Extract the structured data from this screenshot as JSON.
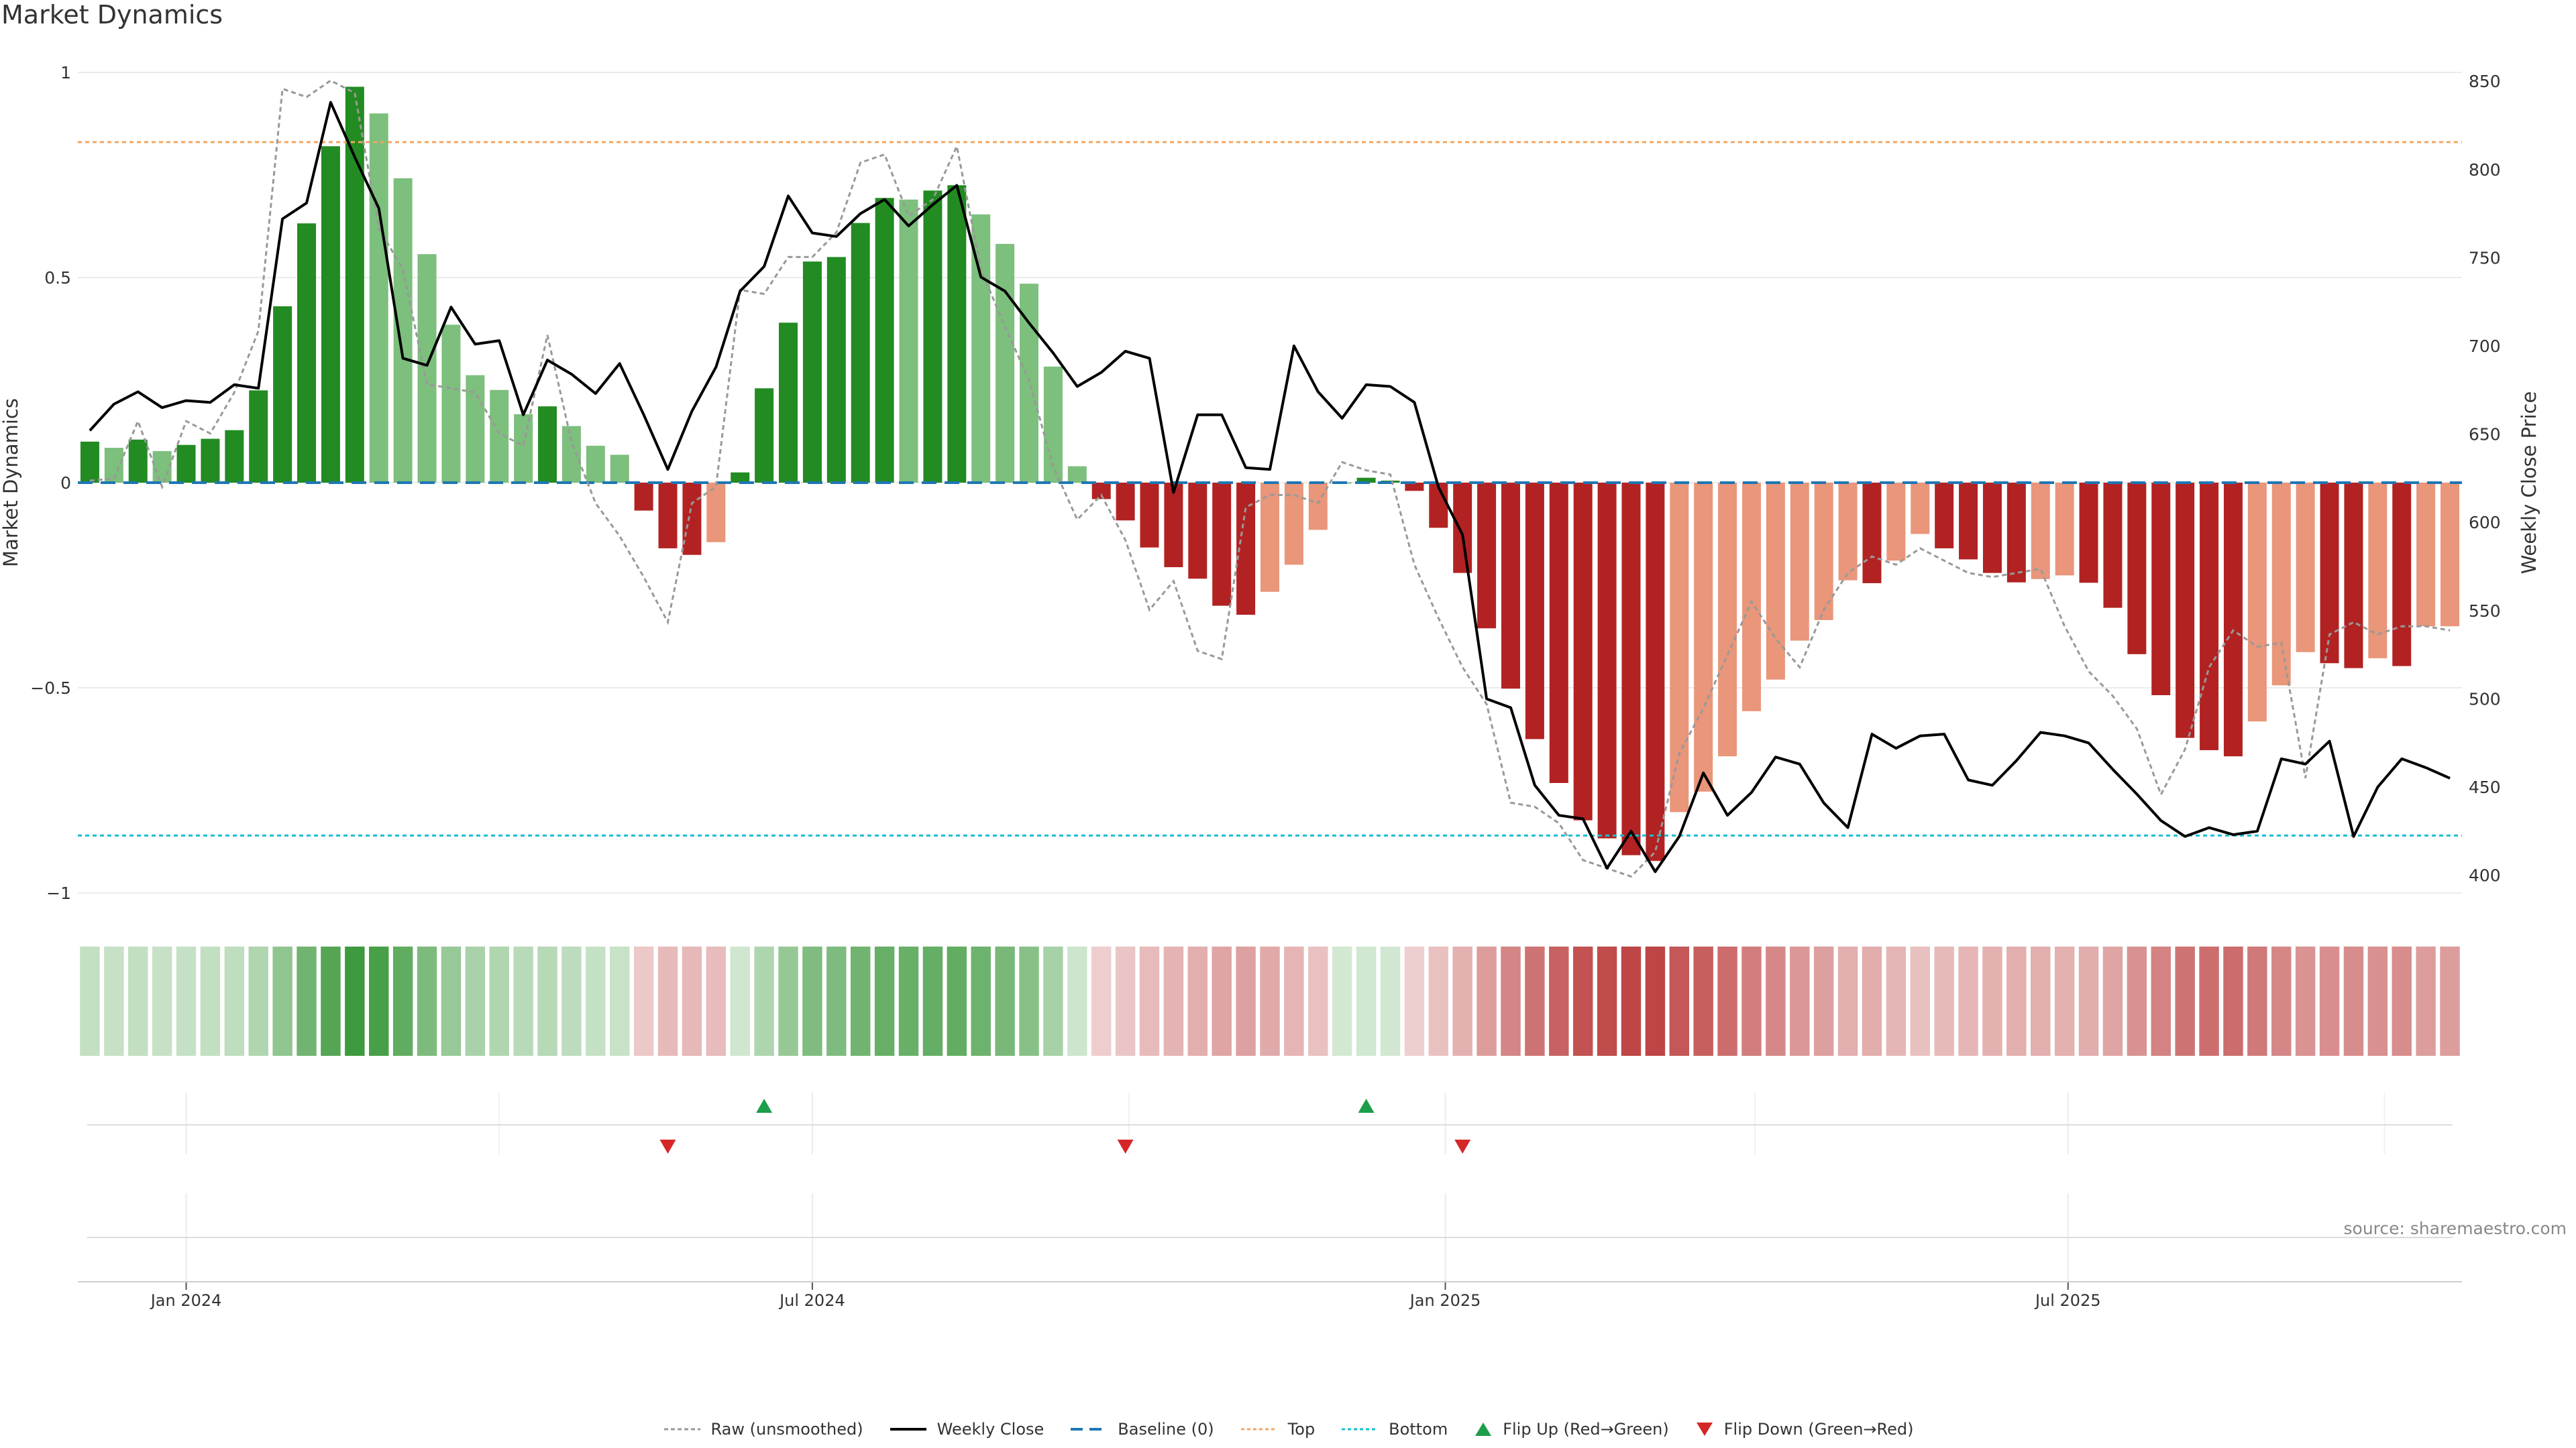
{
  "chart_data": {
    "type": "bar",
    "title": "Market Dynamics",
    "ylabel": "Market Dynamics",
    "y2label": "Weekly Close Price",
    "ylim": [
      -1.0,
      1.0
    ],
    "y2lim": [
      390,
      855
    ],
    "yticks": [
      1,
      0.5,
      0,
      -0.5,
      -1
    ],
    "ytick_labels": [
      "1",
      "0.5",
      "0",
      "−0.5",
      "−1"
    ],
    "y2ticks": [
      850,
      800,
      750,
      700,
      650,
      600,
      550,
      500,
      450,
      400
    ],
    "y2tick_labels": [
      "850",
      "800",
      "750",
      "700",
      "650",
      "600",
      "550",
      "500",
      "450",
      "400"
    ],
    "x_start": "2023-12-04",
    "x_end": "2025-10-20",
    "xticks": [
      "2024-01-01",
      "2024-07-01",
      "2025-01-01",
      "2025-07-01"
    ],
    "xtick_labels": [
      "Jan 2024",
      "Jul 2024",
      "Jan 2025",
      "Jul 2025"
    ],
    "weeks": 99,
    "bars": [
      0.1,
      0.085,
      0.105,
      0.077,
      0.092,
      0.107,
      0.128,
      0.225,
      0.43,
      0.632,
      0.82,
      0.965,
      0.9,
      0.742,
      0.557,
      0.385,
      0.262,
      0.226,
      0.167,
      0.186,
      0.138,
      0.09,
      0.068,
      -0.068,
      -0.16,
      -0.176,
      -0.145,
      0.025,
      0.23,
      0.39,
      0.539,
      0.55,
      0.633,
      0.694,
      0.69,
      0.712,
      0.725,
      0.654,
      0.582,
      0.485,
      0.283,
      0.04,
      -0.04,
      -0.092,
      -0.158,
      -0.206,
      -0.234,
      -0.3,
      -0.322,
      -0.266,
      -0.2,
      -0.115,
      0,
      0.012,
      0.005,
      -0.02,
      -0.11,
      -0.22,
      -0.355,
      -0.502,
      -0.625,
      -0.732,
      -0.823,
      -0.867,
      -0.908,
      -0.922,
      -0.803,
      -0.753,
      -0.667,
      -0.557,
      -0.48,
      -0.385,
      -0.335,
      -0.238,
      -0.245,
      -0.19,
      -0.125,
      -0.16,
      -0.187,
      -0.22,
      -0.243,
      -0.235,
      -0.226,
      -0.244,
      -0.305,
      -0.418,
      -0.518,
      -0.622,
      -0.652,
      -0.667,
      -0.582,
      -0.494,
      -0.413,
      -0.44,
      -0.452,
      -0.428,
      -0.447,
      -0.35,
      -0.35
    ],
    "bar_state": [
      "strong",
      "weak",
      "strong",
      "weak",
      "strong",
      "strong",
      "strong",
      "strong",
      "strong",
      "strong",
      "strong",
      "strong",
      "weak",
      "weak",
      "weak",
      "weak",
      "weak",
      "weak",
      "weak",
      "strong",
      "weak",
      "weak",
      "weak",
      "strong",
      "strong",
      "strong",
      "weak",
      "strong",
      "strong",
      "strong",
      "strong",
      "strong",
      "strong",
      "strong",
      "weak",
      "strong",
      "strong",
      "weak",
      "weak",
      "weak",
      "weak",
      "weak",
      "strong",
      "strong",
      "strong",
      "strong",
      "strong",
      "strong",
      "strong",
      "weak",
      "weak",
      "weak",
      "strong",
      "strong",
      "strong",
      "strong",
      "strong",
      "strong",
      "strong",
      "strong",
      "strong",
      "strong",
      "strong",
      "strong",
      "strong",
      "strong",
      "weak",
      "weak",
      "weak",
      "weak",
      "weak",
      "weak",
      "weak",
      "weak",
      "strong",
      "weak",
      "weak",
      "strong",
      "strong",
      "strong",
      "strong",
      "weak",
      "weak",
      "strong",
      "strong",
      "strong",
      "strong",
      "strong",
      "strong",
      "strong",
      "weak",
      "weak",
      "weak",
      "strong",
      "strong",
      "weak",
      "strong",
      "weak",
      "weak"
    ],
    "raw": [
      0.005,
      0.01,
      0.15,
      -0.01,
      0.15,
      0.12,
      0.22,
      0.37,
      0.96,
      0.94,
      0.98,
      0.95,
      0.62,
      0.52,
      0.24,
      0.23,
      0.22,
      0.12,
      0.09,
      0.36,
      0.1,
      -0.05,
      -0.13,
      -0.23,
      -0.34,
      -0.05,
      -0.01,
      0.47,
      0.46,
      0.55,
      0.55,
      0.61,
      0.78,
      0.8,
      0.65,
      0.69,
      0.82,
      0.52,
      0.38,
      0.25,
      0.04,
      -0.09,
      -0.03,
      -0.14,
      -0.31,
      -0.24,
      -0.41,
      -0.43,
      -0.06,
      -0.03,
      -0.03,
      -0.05,
      0.05,
      0.03,
      0.02,
      -0.2,
      -0.33,
      -0.45,
      -0.54,
      -0.78,
      -0.79,
      -0.83,
      -0.92,
      -0.94,
      -0.96,
      -0.9,
      -0.66,
      -0.55,
      -0.42,
      -0.29,
      -0.38,
      -0.45,
      -0.31,
      -0.22,
      -0.18,
      -0.2,
      -0.16,
      -0.19,
      -0.22,
      -0.23,
      -0.22,
      -0.21,
      -0.35,
      -0.46,
      -0.52,
      -0.6,
      -0.76,
      -0.65,
      -0.45,
      -0.36,
      -0.4,
      -0.39,
      -0.72,
      -0.37,
      -0.34,
      -0.37,
      -0.35,
      -0.35,
      -0.36
    ],
    "close": [
      652,
      667,
      674,
      665,
      669,
      668,
      678,
      676,
      772,
      781,
      838,
      807,
      778,
      693,
      689,
      722,
      701,
      703,
      661,
      692,
      684,
      673,
      690,
      661,
      630,
      663,
      688,
      731,
      745,
      785,
      764,
      762,
      775,
      783,
      768,
      780,
      791,
      739,
      731,
      713,
      696,
      677,
      685,
      697,
      693,
      617,
      661,
      661,
      631,
      630,
      700,
      674,
      659,
      678,
      677,
      668,
      620,
      593,
      500,
      495,
      451,
      434,
      432,
      404,
      425,
      402,
      422,
      458,
      434,
      447,
      467,
      463,
      441,
      427,
      480,
      472,
      479,
      480,
      454,
      451,
      465,
      481,
      479,
      475,
      460,
      446,
      431,
      422,
      427,
      423,
      425,
      466,
      463,
      476,
      422,
      450,
      466,
      461,
      455
    ],
    "top_threshold": 0.83,
    "bottom_threshold": -0.86,
    "heatstrip": [
      0.1,
      0.085,
      0.105,
      0.077,
      0.092,
      0.107,
      0.128,
      0.225,
      0.43,
      0.632,
      0.82,
      0.965,
      0.9,
      0.742,
      0.557,
      0.385,
      0.262,
      0.226,
      0.167,
      0.186,
      0.138,
      0.09,
      0.068,
      -0.068,
      -0.16,
      -0.176,
      -0.145,
      0.025,
      0.23,
      0.39,
      0.539,
      0.55,
      0.633,
      0.694,
      0.69,
      0.712,
      0.725,
      0.654,
      0.582,
      0.485,
      0.283,
      0.04,
      -0.04,
      -0.092,
      -0.158,
      -0.206,
      -0.234,
      -0.3,
      -0.322,
      -0.266,
      -0.2,
      -0.115,
      0,
      0.012,
      0.005,
      -0.02,
      -0.11,
      -0.22,
      -0.355,
      -0.502,
      -0.625,
      -0.732,
      -0.823,
      -0.867,
      -0.908,
      -0.922,
      -0.803,
      -0.753,
      -0.667,
      -0.557,
      -0.48,
      -0.385,
      -0.335,
      -0.238,
      -0.245,
      -0.19,
      -0.125,
      -0.16,
      -0.187,
      -0.22,
      -0.243,
      -0.235,
      -0.226,
      -0.244,
      -0.305,
      -0.418,
      -0.518,
      -0.622,
      -0.652,
      -0.667,
      -0.582,
      -0.494,
      -0.413,
      -0.44,
      -0.452,
      -0.428,
      -0.447,
      -0.35,
      -0.35
    ],
    "flips_up": [
      "2024-06-17",
      "2024-12-09"
    ],
    "flips_down": [
      "2024-05-20",
      "2024-09-30",
      "2025-01-06"
    ],
    "colors": {
      "green_strong": "#228b22",
      "green_weak": "#7dbf7d",
      "red_strong": "#b22222",
      "red_weak": "#e9967a",
      "raw_line": "#999999",
      "close_line": "#000000",
      "baseline": "#1f77b4",
      "top": "#f4a460",
      "bottom": "#17becf",
      "flip_up": "#1e9e4a",
      "flip_down": "#d62728",
      "grid": "#ebebeb"
    },
    "legend": [
      {
        "label": "Raw (unsmoothed)",
        "style": "raw"
      },
      {
        "label": "Weekly Close",
        "style": "close"
      },
      {
        "label": "Baseline (0)",
        "style": "baseline"
      },
      {
        "label": "Top",
        "style": "top"
      },
      {
        "label": "Bottom",
        "style": "bottom"
      },
      {
        "label": "Flip Up (Red→Green)",
        "style": "flip_up"
      },
      {
        "label": "Flip Down (Green→Red)",
        "style": "flip_down"
      }
    ],
    "source": "source: sharemaestro.com"
  }
}
